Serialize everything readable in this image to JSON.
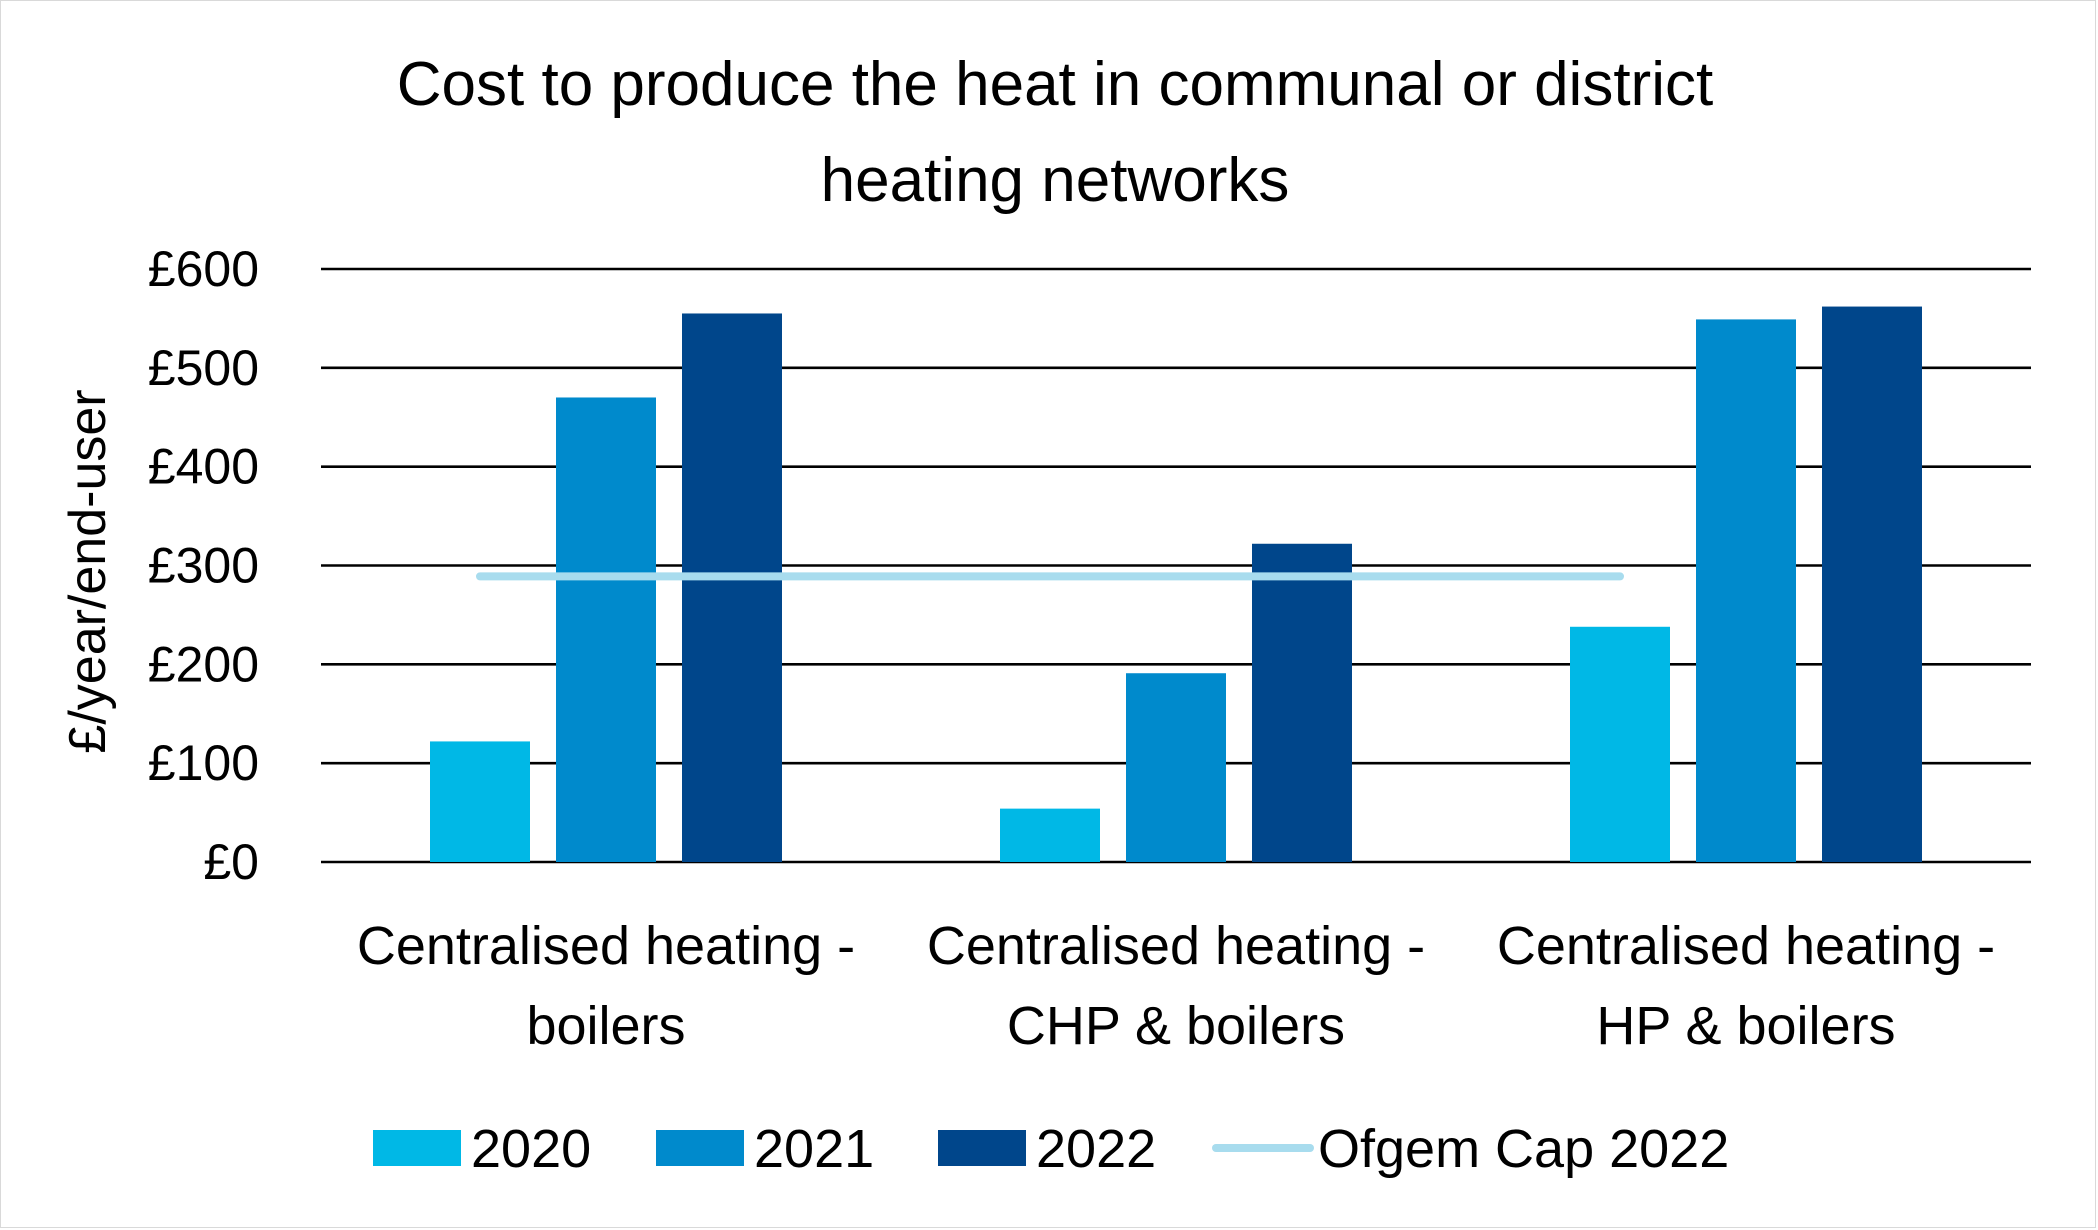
{
  "chart_data": {
    "type": "bar",
    "title": "Cost to produce the heat in communal or district heating networks",
    "title_lines": [
      "Cost to produce the heat in communal or district",
      "heating networks"
    ],
    "xlabel": "",
    "ylabel": "£/year/end-user",
    "ylim": [
      0,
      600
    ],
    "yticks": [
      0,
      100,
      200,
      300,
      400,
      500,
      600
    ],
    "ytick_labels": [
      "£0",
      "£100",
      "£200",
      "£300",
      "£400",
      "£500",
      "£600"
    ],
    "grid": true,
    "legend_position": "bottom",
    "categories": [
      "Centralised heating - boilers",
      "Centralised heating - CHP & boilers",
      "Centralised heating - HP & boilers"
    ],
    "category_label_lines": [
      [
        "Centralised heating -",
        "boilers"
      ],
      [
        "Centralised heating -",
        "CHP & boilers"
      ],
      [
        "Centralised heating -",
        "HP & boilers"
      ]
    ],
    "series": [
      {
        "name": "2020",
        "type": "bar",
        "color": "#00B8E6",
        "values": [
          122,
          54,
          238
        ]
      },
      {
        "name": "2021",
        "type": "bar",
        "color": "#008ACC",
        "values": [
          470,
          191,
          549
        ]
      },
      {
        "name": "2022",
        "type": "bar",
        "color": "#00468B",
        "values": [
          555,
          322,
          562
        ]
      },
      {
        "name": "Ofgem Cap 2022",
        "type": "line",
        "color": "#A8DCEE",
        "values": [
          289,
          289,
          289
        ]
      }
    ]
  }
}
